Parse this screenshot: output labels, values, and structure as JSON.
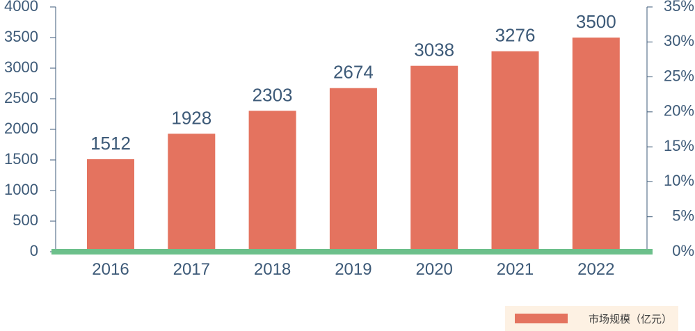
{
  "chart_data": {
    "type": "bar",
    "categories": [
      "2016",
      "2017",
      "2018",
      "2019",
      "2020",
      "2021",
      "2022"
    ],
    "series": [
      {
        "name": "市场规模（亿元）",
        "values": [
          1512,
          1928,
          2303,
          2674,
          3038,
          3276,
          3500
        ]
      }
    ],
    "data_labels": [
      "1512",
      "1928",
      "2303",
      "2674",
      "3038",
      "3276",
      "3500"
    ],
    "ylim": [
      0,
      4000
    ],
    "y_ticks": [
      "0",
      "500",
      "1000",
      "1500",
      "2000",
      "2500",
      "3000",
      "3500",
      "4000"
    ],
    "y2lim": [
      0,
      35
    ],
    "y2_ticks": [
      "0%",
      "5%",
      "10%",
      "15%",
      "20%",
      "25%",
      "30%",
      "35%"
    ],
    "grid": false,
    "legend": "bottom-right",
    "colors": {
      "bar": "#e4735f",
      "baseline": "#6cc08b",
      "axis": "#3d5a78",
      "legend_bg": "#fdf1e3"
    }
  }
}
